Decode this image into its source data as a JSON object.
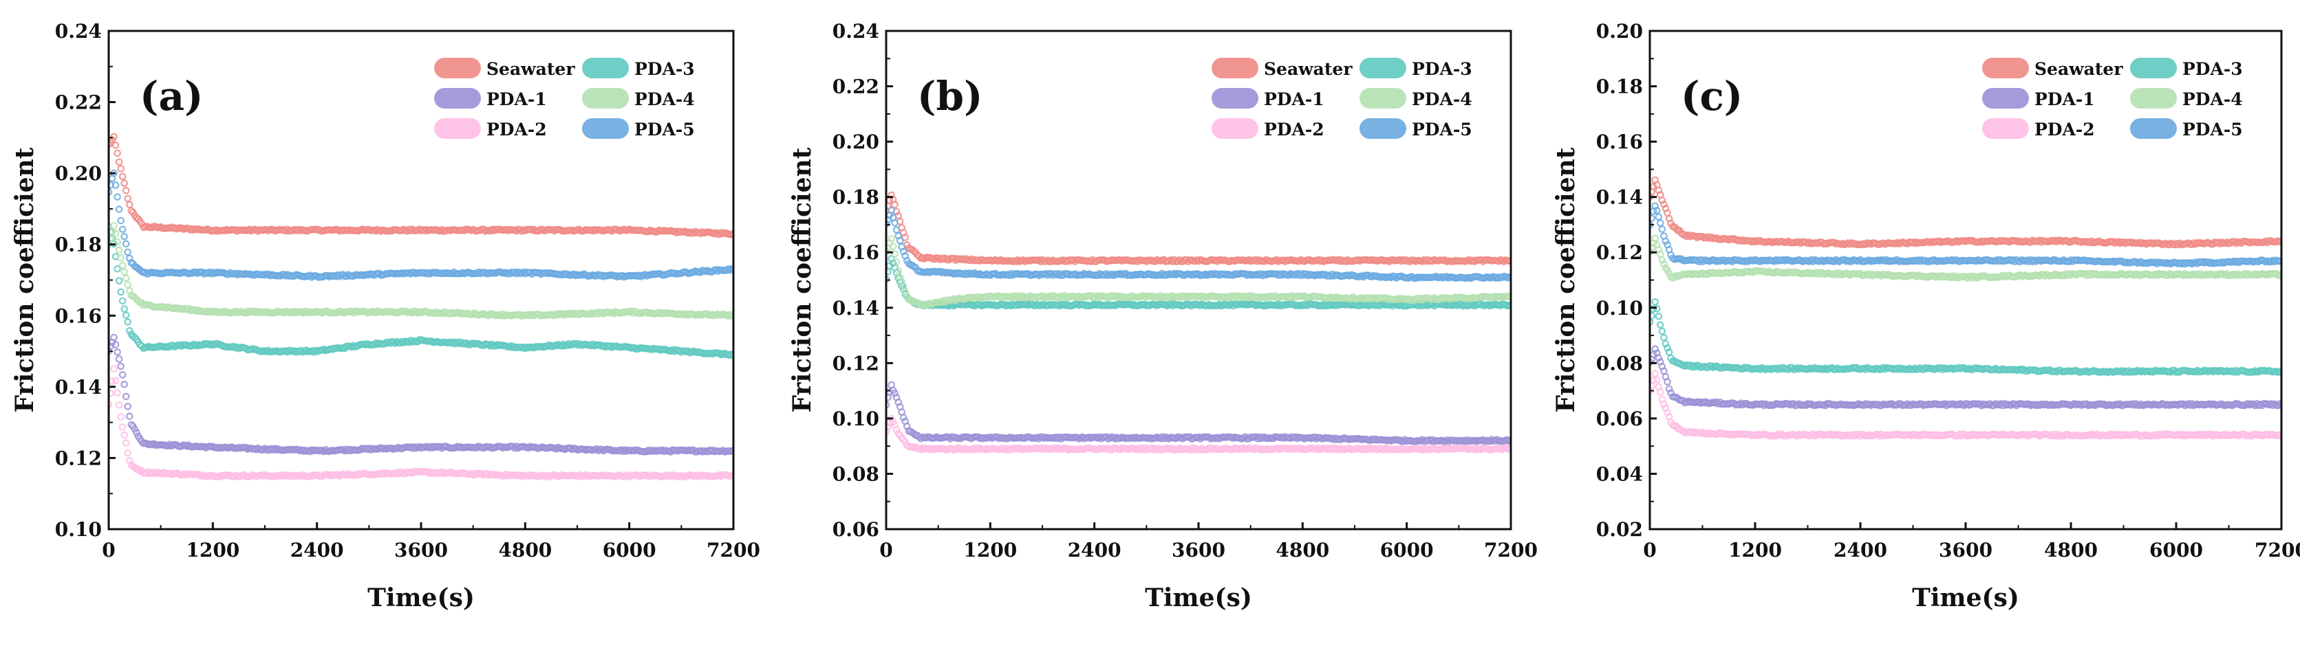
{
  "legend_entries": [
    {
      "name": "Seawater",
      "color": "#f08a85"
    },
    {
      "name": "PDA-1",
      "color": "#9a91d6"
    },
    {
      "name": "PDA-2",
      "color": "#ffbde4"
    },
    {
      "name": "PDA-3",
      "color": "#5fc9c0"
    },
    {
      "name": "PDA-4",
      "color": "#b4e0b0"
    },
    {
      "name": "PDA-5",
      "color": "#6aa9e0"
    }
  ],
  "chart_data": [
    {
      "type": "line",
      "panel_label": "(a)",
      "xlabel": "Time(s)",
      "ylabel": "Friction coefficient",
      "xlim": [
        0,
        7200
      ],
      "ylim": [
        0.1,
        0.24
      ],
      "x_ticks": [
        0,
        1200,
        2400,
        3600,
        4800,
        6000,
        7200
      ],
      "y_ticks": [
        "0.10",
        "0.12",
        "0.14",
        "0.16",
        "0.18",
        "0.20",
        "0.22",
        "0.24"
      ],
      "legend_position": "top-right",
      "series": [
        {
          "name": "Seawater",
          "points": [
            [
              0,
              0.208
            ],
            [
              60,
              0.21
            ],
            [
              150,
              0.2
            ],
            [
              250,
              0.19
            ],
            [
              400,
              0.185
            ],
            [
              1200,
              0.184
            ],
            [
              2400,
              0.184
            ],
            [
              3600,
              0.184
            ],
            [
              4800,
              0.184
            ],
            [
              6000,
              0.184
            ],
            [
              7200,
              0.183
            ]
          ]
        },
        {
          "name": "PDA-1",
          "points": [
            [
              0,
              0.15
            ],
            [
              60,
              0.154
            ],
            [
              150,
              0.145
            ],
            [
              250,
              0.13
            ],
            [
              400,
              0.124
            ],
            [
              1200,
              0.123
            ],
            [
              2400,
              0.122
            ],
            [
              3600,
              0.123
            ],
            [
              4800,
              0.123
            ],
            [
              6000,
              0.122
            ],
            [
              7200,
              0.122
            ]
          ]
        },
        {
          "name": "PDA-2",
          "points": [
            [
              0,
              0.135
            ],
            [
              60,
              0.145
            ],
            [
              150,
              0.13
            ],
            [
              250,
              0.118
            ],
            [
              400,
              0.116
            ],
            [
              1200,
              0.115
            ],
            [
              2400,
              0.115
            ],
            [
              3600,
              0.116
            ],
            [
              4800,
              0.115
            ],
            [
              6000,
              0.115
            ],
            [
              7200,
              0.115
            ]
          ]
        },
        {
          "name": "PDA-3",
          "points": [
            [
              0,
              0.185
            ],
            [
              60,
              0.18
            ],
            [
              150,
              0.165
            ],
            [
              250,
              0.155
            ],
            [
              400,
              0.151
            ],
            [
              1200,
              0.152
            ],
            [
              1800,
              0.15
            ],
            [
              2400,
              0.15
            ],
            [
              3000,
              0.152
            ],
            [
              3600,
              0.153
            ],
            [
              4200,
              0.152
            ],
            [
              4800,
              0.151
            ],
            [
              5400,
              0.152
            ],
            [
              6000,
              0.151
            ],
            [
              7200,
              0.149
            ]
          ]
        },
        {
          "name": "PDA-4",
          "points": [
            [
              0,
              0.18
            ],
            [
              60,
              0.185
            ],
            [
              150,
              0.175
            ],
            [
              250,
              0.166
            ],
            [
              400,
              0.163
            ],
            [
              1200,
              0.161
            ],
            [
              2400,
              0.161
            ],
            [
              3600,
              0.161
            ],
            [
              4800,
              0.16
            ],
            [
              6000,
              0.161
            ],
            [
              7200,
              0.16
            ]
          ]
        },
        {
          "name": "PDA-5",
          "points": [
            [
              0,
              0.195
            ],
            [
              60,
              0.2
            ],
            [
              150,
              0.185
            ],
            [
              250,
              0.175
            ],
            [
              400,
              0.172
            ],
            [
              1200,
              0.172
            ],
            [
              2400,
              0.171
            ],
            [
              3600,
              0.172
            ],
            [
              4800,
              0.172
            ],
            [
              6000,
              0.171
            ],
            [
              7200,
              0.173
            ]
          ]
        }
      ]
    },
    {
      "type": "line",
      "panel_label": "(b)",
      "xlabel": "Time(s)",
      "ylabel": "Friction coefficient",
      "xlim": [
        0,
        7200
      ],
      "ylim": [
        0.06,
        0.24
      ],
      "x_ticks": [
        0,
        1200,
        2400,
        3600,
        4800,
        6000,
        7200
      ],
      "y_ticks": [
        "0.06",
        "0.08",
        "0.10",
        "0.12",
        "0.14",
        "0.16",
        "0.18",
        "0.20",
        "0.22",
        "0.24"
      ],
      "legend_position": "top-right",
      "series": [
        {
          "name": "Seawater",
          "points": [
            [
              0,
              0.175
            ],
            [
              60,
              0.181
            ],
            [
              150,
              0.172
            ],
            [
              250,
              0.162
            ],
            [
              400,
              0.158
            ],
            [
              1200,
              0.157
            ],
            [
              2400,
              0.157
            ],
            [
              3600,
              0.157
            ],
            [
              4800,
              0.157
            ],
            [
              6000,
              0.157
            ],
            [
              7200,
              0.157
            ]
          ]
        },
        {
          "name": "PDA-1",
          "points": [
            [
              0,
              0.105
            ],
            [
              60,
              0.112
            ],
            [
              150,
              0.105
            ],
            [
              250,
              0.096
            ],
            [
              400,
              0.093
            ],
            [
              1200,
              0.093
            ],
            [
              2400,
              0.093
            ],
            [
              3600,
              0.093
            ],
            [
              4800,
              0.093
            ],
            [
              6000,
              0.092
            ],
            [
              7200,
              0.092
            ]
          ]
        },
        {
          "name": "PDA-2",
          "points": [
            [
              0,
              0.095
            ],
            [
              60,
              0.1
            ],
            [
              150,
              0.094
            ],
            [
              250,
              0.09
            ],
            [
              400,
              0.089
            ],
            [
              1200,
              0.089
            ],
            [
              2400,
              0.089
            ],
            [
              3600,
              0.089
            ],
            [
              4800,
              0.089
            ],
            [
              6000,
              0.089
            ],
            [
              7200,
              0.089
            ]
          ]
        },
        {
          "name": "PDA-3",
          "points": [
            [
              0,
              0.15
            ],
            [
              60,
              0.158
            ],
            [
              150,
              0.15
            ],
            [
              250,
              0.143
            ],
            [
              400,
              0.141
            ],
            [
              1200,
              0.141
            ],
            [
              2400,
              0.141
            ],
            [
              3600,
              0.141
            ],
            [
              4800,
              0.141
            ],
            [
              6000,
              0.141
            ],
            [
              7200,
              0.141
            ]
          ]
        },
        {
          "name": "PDA-4",
          "points": [
            [
              0,
              0.16
            ],
            [
              60,
              0.165
            ],
            [
              150,
              0.152
            ],
            [
              250,
              0.143
            ],
            [
              400,
              0.141
            ],
            [
              800,
              0.143
            ],
            [
              1200,
              0.144
            ],
            [
              2400,
              0.144
            ],
            [
              3600,
              0.144
            ],
            [
              4800,
              0.144
            ],
            [
              6000,
              0.143
            ],
            [
              7200,
              0.144
            ]
          ]
        },
        {
          "name": "PDA-5",
          "points": [
            [
              0,
              0.17
            ],
            [
              60,
              0.175
            ],
            [
              150,
              0.165
            ],
            [
              250,
              0.156
            ],
            [
              400,
              0.153
            ],
            [
              1200,
              0.152
            ],
            [
              2400,
              0.152
            ],
            [
              3600,
              0.152
            ],
            [
              4800,
              0.152
            ],
            [
              6000,
              0.151
            ],
            [
              7200,
              0.151
            ]
          ]
        }
      ]
    },
    {
      "type": "line",
      "panel_label": "(c)",
      "xlabel": "Time(s)",
      "ylabel": "Friction coefficient",
      "xlim": [
        0,
        7200
      ],
      "ylim": [
        0.02,
        0.2
      ],
      "x_ticks": [
        0,
        1200,
        2400,
        3600,
        4800,
        6000,
        7200
      ],
      "y_ticks": [
        "0.02",
        "0.04",
        "0.06",
        "0.08",
        "0.10",
        "0.12",
        "0.14",
        "0.16",
        "0.18",
        "0.20"
      ],
      "legend_position": "top-right",
      "series": [
        {
          "name": "Seawater",
          "points": [
            [
              0,
              0.14
            ],
            [
              60,
              0.146
            ],
            [
              150,
              0.138
            ],
            [
              250,
              0.13
            ],
            [
              400,
              0.126
            ],
            [
              1200,
              0.124
            ],
            [
              2400,
              0.123
            ],
            [
              3600,
              0.124
            ],
            [
              4800,
              0.124
            ],
            [
              6000,
              0.123
            ],
            [
              7200,
              0.124
            ]
          ]
        },
        {
          "name": "PDA-1",
          "points": [
            [
              0,
              0.08
            ],
            [
              60,
              0.085
            ],
            [
              150,
              0.078
            ],
            [
              250,
              0.068
            ],
            [
              400,
              0.066
            ],
            [
              1200,
              0.065
            ],
            [
              2400,
              0.065
            ],
            [
              3600,
              0.065
            ],
            [
              4800,
              0.065
            ],
            [
              6000,
              0.065
            ],
            [
              7200,
              0.065
            ]
          ]
        },
        {
          "name": "PDA-2",
          "points": [
            [
              0,
              0.07
            ],
            [
              60,
              0.076
            ],
            [
              150,
              0.066
            ],
            [
              250,
              0.058
            ],
            [
              400,
              0.055
            ],
            [
              1200,
              0.054
            ],
            [
              2400,
              0.054
            ],
            [
              3600,
              0.054
            ],
            [
              4800,
              0.054
            ],
            [
              6000,
              0.054
            ],
            [
              7200,
              0.054
            ]
          ]
        },
        {
          "name": "PDA-3",
          "points": [
            [
              0,
              0.095
            ],
            [
              60,
              0.102
            ],
            [
              150,
              0.09
            ],
            [
              250,
              0.081
            ],
            [
              400,
              0.079
            ],
            [
              1200,
              0.078
            ],
            [
              2400,
              0.078
            ],
            [
              3600,
              0.078
            ],
            [
              4800,
              0.077
            ],
            [
              6000,
              0.077
            ],
            [
              7200,
              0.077
            ]
          ]
        },
        {
          "name": "PDA-4",
          "points": [
            [
              0,
              0.12
            ],
            [
              60,
              0.125
            ],
            [
              150,
              0.116
            ],
            [
              250,
              0.111
            ],
            [
              400,
              0.112
            ],
            [
              1200,
              0.113
            ],
            [
              2400,
              0.112
            ],
            [
              3600,
              0.111
            ],
            [
              4800,
              0.112
            ],
            [
              6000,
              0.112
            ],
            [
              7200,
              0.112
            ]
          ]
        },
        {
          "name": "PDA-5",
          "points": [
            [
              0,
              0.13
            ],
            [
              60,
              0.137
            ],
            [
              150,
              0.127
            ],
            [
              250,
              0.118
            ],
            [
              400,
              0.117
            ],
            [
              1200,
              0.117
            ],
            [
              2400,
              0.117
            ],
            [
              3600,
              0.117
            ],
            [
              4800,
              0.117
            ],
            [
              6000,
              0.116
            ],
            [
              7200,
              0.117
            ]
          ]
        }
      ]
    }
  ]
}
